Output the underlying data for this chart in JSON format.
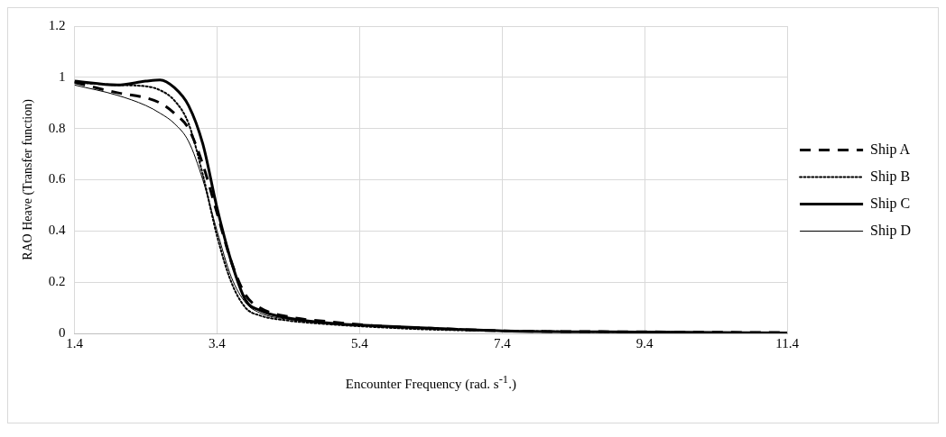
{
  "chart_data": {
    "type": "line",
    "xlabel": "Encounter Frequency (rad. s$^{-1}$.)",
    "ylabel": "RAO Heave (Transfer function)",
    "x": [
      1.4,
      2.0,
      2.4,
      2.6,
      2.8,
      3.0,
      3.2,
      3.4,
      3.6,
      3.8,
      4.0,
      4.4,
      5.0,
      5.6,
      6.4,
      7.4,
      9.4,
      11.4
    ],
    "xlim": [
      1.4,
      11.4
    ],
    "xticks": [
      1.4,
      3.4,
      5.4,
      7.4,
      9.4,
      11.4
    ],
    "ylim": [
      0,
      1.2
    ],
    "yticks": [
      0,
      0.2,
      0.4,
      0.6,
      0.8,
      1,
      1.2
    ],
    "grid": true,
    "legend": "right",
    "marker": "none",
    "series": [
      {
        "name": "Ship A",
        "color": "#000000",
        "line_style": "dashed",
        "values": [
          0.98,
          0.94,
          0.92,
          0.9,
          0.86,
          0.8,
          0.66,
          0.47,
          0.28,
          0.15,
          0.1,
          0.065,
          0.045,
          0.03,
          0.02,
          0.01,
          0.006,
          0.003
        ]
      },
      {
        "name": "Ship B",
        "color": "#000000",
        "line_style": "dotted",
        "values": [
          0.98,
          0.97,
          0.965,
          0.95,
          0.91,
          0.82,
          0.62,
          0.38,
          0.2,
          0.1,
          0.07,
          0.05,
          0.035,
          0.025,
          0.015,
          0.01,
          0.005,
          0.002
        ]
      },
      {
        "name": "Ship C",
        "color": "#000000",
        "line_style": "solid",
        "values": [
          0.985,
          0.97,
          0.985,
          0.99,
          0.96,
          0.89,
          0.74,
          0.49,
          0.28,
          0.13,
          0.09,
          0.06,
          0.04,
          0.03,
          0.02,
          0.01,
          0.005,
          0.002
        ]
      },
      {
        "name": "Ship D",
        "color": "#000000",
        "line_style": "solid",
        "values": [
          0.97,
          0.93,
          0.89,
          0.86,
          0.82,
          0.75,
          0.6,
          0.4,
          0.22,
          0.12,
          0.08,
          0.055,
          0.04,
          0.03,
          0.02,
          0.01,
          0.005,
          0.002
        ]
      }
    ]
  }
}
